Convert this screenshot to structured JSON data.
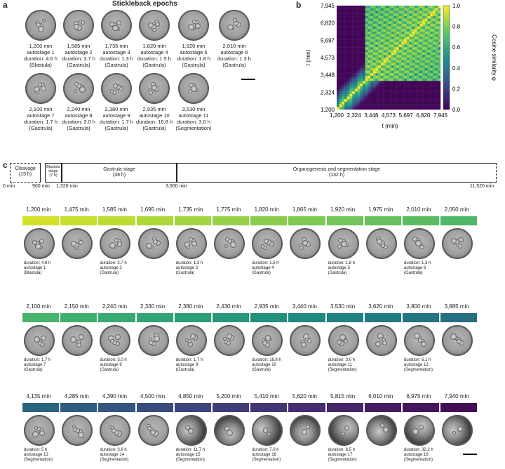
{
  "panel_a": {
    "label": "a",
    "title": "Stickleback epochs",
    "items": [
      {
        "time": "1,200 min",
        "stage": "autostage 1",
        "duration": "duration: 4.6 h",
        "phase": "(Blastula)"
      },
      {
        "time": "1,585 min",
        "stage": "autostage 2",
        "duration": "duration: 3.7 h",
        "phase": "(Gastrula)"
      },
      {
        "time": "1,735 min",
        "stage": "autostage 3",
        "duration": "duration: 1.3 h",
        "phase": "(Gastrula)"
      },
      {
        "time": "1,820 min",
        "stage": "autostage 4",
        "duration": "duration: 1.5 h",
        "phase": "(Gastrula)"
      },
      {
        "time": "1,920 min",
        "stage": "autostage 5",
        "duration": "duration: 1.8 h",
        "phase": "(Gastrula)"
      },
      {
        "time": "2,010 min",
        "stage": "autostage 6",
        "duration": "duration: 1.3 h",
        "phase": "(Gastrula)"
      },
      {
        "time": "2,100 min",
        "stage": "autostage 7",
        "duration": "duration: 1.7 h",
        "phase": "(Gastrula)"
      },
      {
        "time": "2,240 min",
        "stage": "autostage 8",
        "duration": "duration: 3.0 h",
        "phase": "(Gastrula)"
      },
      {
        "time": "2,380 min",
        "stage": "autostage 9",
        "duration": "duration: 1.7 h",
        "phase": "(Gastrula)"
      },
      {
        "time": "2,935 min",
        "stage": "autostage 10",
        "duration": "duration: 16.8 h",
        "phase": "(Gastrula)"
      },
      {
        "time": "3,530 min",
        "stage": "autostage 11",
        "duration": "duration: 3.0 h",
        "phase": "(Segmentation)"
      }
    ]
  },
  "panel_b": {
    "label": "b",
    "xlabel": "t (min)",
    "ylabel": "t (min)",
    "colorbar_label": "Cosine similarity φ",
    "ticks": [
      "1,200",
      "2,324",
      "3,448",
      "4,573",
      "5,697",
      "6,820",
      "7,945"
    ],
    "colorbar_ticks": [
      "1.0",
      "0.8",
      "0.6",
      "0.4",
      "0.2",
      "0.0"
    ]
  },
  "panel_c": {
    "label": "c",
    "stages": [
      {
        "name": "Cleavage",
        "dur": "(15 h)"
      },
      {
        "name": "Blastula stage",
        "dur": "(7 h)"
      },
      {
        "name": "Gastrula stage",
        "dur": "(38 h)"
      },
      {
        "name": "Organogenesis and segmentation stage",
        "dur": "(132 h)"
      }
    ],
    "stage_ticks": [
      "0 min",
      "900 min",
      "1,320 min",
      "3,600 min",
      "11,520 min"
    ],
    "rows": [
      {
        "times": [
          "1,200 min",
          "1,475 min",
          "1,585 min",
          "1,695 min",
          "1,735 min",
          "1,775 min",
          "1,820 min",
          "1,865 min",
          "1,920 min",
          "1,975 min",
          "2,010 min",
          "2,050 min"
        ],
        "colors": [
          "#d4e12a",
          "#c8df2e",
          "#bcdc33",
          "#aed83a",
          "#a2d540",
          "#96d147",
          "#8acd4c",
          "#7ec952",
          "#72c558",
          "#66c15d",
          "#5bbd62",
          "#4fb866"
        ],
        "captions": [
          {
            "idx": 0,
            "duration": "duration: 4.6 h",
            "stage": "autostage 1",
            "phase": "(Blastula)"
          },
          {
            "idx": 2,
            "duration": "duration: 3.7 h",
            "stage": "autostage 2",
            "phase": "(Gastrula)"
          },
          {
            "idx": 4,
            "duration": "duration: 1.3 h",
            "stage": "autostage 3",
            "phase": "(Gastrula)"
          },
          {
            "idx": 6,
            "duration": "duration: 1.5 h",
            "stage": "autostage 4",
            "phase": "(Gastrula)"
          },
          {
            "idx": 8,
            "duration": "duration: 1.8 h",
            "stage": "autostage 5",
            "phase": "(Gastrula)"
          },
          {
            "idx": 10,
            "duration": "duration: 1.3 h",
            "stage": "autostage 6",
            "phase": "(Gastrula)"
          }
        ]
      },
      {
        "times": [
          "2,100 min",
          "2,150 min",
          "2,240 min",
          "2,330 min",
          "2,380 min",
          "2,430 min",
          "2,935 min",
          "3,440 min",
          "3,530 min",
          "3,620 min",
          "3,800 min",
          "3,985 min"
        ],
        "colors": [
          "#48b46a",
          "#40af6e",
          "#39a972",
          "#32a375",
          "#2c9d78",
          "#27967a",
          "#23907c",
          "#21897e",
          "#20827f",
          "#217b80",
          "#237480",
          "#256d80"
        ],
        "captions": [
          {
            "idx": 0,
            "duration": "duration: 1.7 h",
            "stage": "autostage 7",
            "phase": "(Gastrula)"
          },
          {
            "idx": 2,
            "duration": "duration: 3.0 h",
            "stage": "autostage 8",
            "phase": "(Gastrula)"
          },
          {
            "idx": 4,
            "duration": "duration: 1.7 h",
            "stage": "autostage 9",
            "phase": "(Gastrula)"
          },
          {
            "idx": 6,
            "duration": "duration: 16.8 h",
            "stage": "autostage 10",
            "phase": "(Gastrula)"
          },
          {
            "idx": 8,
            "duration": "duration: 3.0 h",
            "stage": "autostage 11",
            "phase": "(Segmentation)"
          },
          {
            "idx": 10,
            "duration": "duration: 6.1 h",
            "stage": "autostage 12",
            "phase": "(Segmentation)"
          }
        ]
      },
      {
        "times": [
          "4,135 min",
          "4,285 min",
          "4,390 min",
          "4,500 min",
          "4,850 min",
          "5,200 min",
          "5,410 min",
          "5,620 min",
          "5,815 min",
          "6,010 min",
          "6,975 min",
          "7,940 min"
        ],
        "colors": [
          "#2a6580",
          "#2e5d80",
          "#33557f",
          "#384d7e",
          "#3d457c",
          "#413d79",
          "#433574",
          "#452d6f",
          "#462569",
          "#461d62",
          "#45155b",
          "#440d54"
        ],
        "captions": [
          {
            "idx": 0,
            "duration": "duration: 5 h",
            "stage": "autostage 13",
            "phase": "(Segmentation)"
          },
          {
            "idx": 2,
            "duration": "duration: 3.6 h",
            "stage": "autostage 14",
            "phase": "(Segmentation)"
          },
          {
            "idx": 4,
            "duration": "duration: 11.7 h",
            "stage": "autostage 15",
            "phase": "(Segmentation)"
          },
          {
            "idx": 6,
            "duration": "duration: 7.0 h",
            "stage": "autostage 16",
            "phase": "(Segmentation)"
          },
          {
            "idx": 8,
            "duration": "duration: 6.5 h",
            "stage": "autostage 17",
            "phase": "(Segmentation)"
          },
          {
            "idx": 10,
            "duration": "duration: 32.2 h",
            "stage": "autostage 18",
            "phase": "(Segmentation)"
          }
        ]
      }
    ]
  },
  "colors": {
    "heat_low": "#440154",
    "heat_mid": "#21918c",
    "heat_high": "#fde725"
  }
}
